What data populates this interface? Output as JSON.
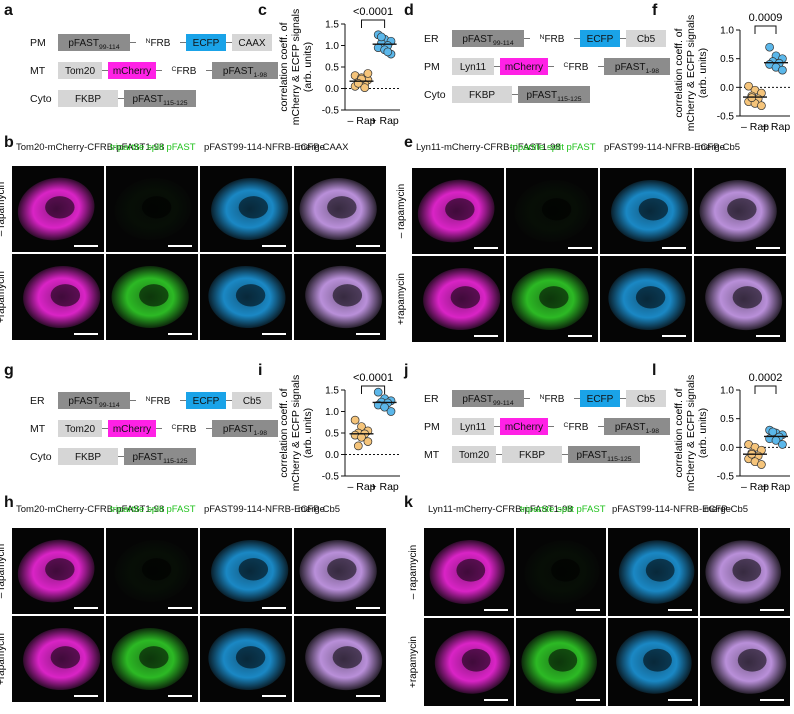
{
  "panels": {
    "a": {
      "label": "a",
      "rows": [
        {
          "tag": "PM",
          "blocks": [
            "pFAST99-114",
            "NFRB",
            "ECFP",
            "CAAX"
          ]
        },
        {
          "tag": "MT",
          "blocks": [
            "Tom20",
            "mCherry",
            "CFRB",
            "pFAST1-98"
          ]
        },
        {
          "tag": "Cyto",
          "blocks": [
            "FKBP",
            "pFAST115-125"
          ]
        }
      ]
    },
    "b": {
      "label": "b",
      "headers": [
        "Tom20-mCherry-CFRB-pFAST1-98",
        "tripartite split pFAST",
        "pFAST99-114-NFRB-ECFP-CAAX",
        "merge"
      ],
      "rows": [
        "– rapamycin",
        "+rapamycin"
      ]
    },
    "c": {
      "label": "c",
      "pvalue": "<0.0001"
    },
    "d": {
      "label": "d",
      "rows": [
        {
          "tag": "ER",
          "blocks": [
            "pFAST99-114",
            "NFRB",
            "ECFP",
            "Cb5"
          ]
        },
        {
          "tag": "PM",
          "blocks": [
            "Lyn11",
            "mCherry",
            "CFRB",
            "pFAST1-98"
          ]
        },
        {
          "tag": "Cyto",
          "blocks": [
            "FKBP",
            "pFAST115-125"
          ]
        }
      ]
    },
    "e": {
      "label": "e",
      "headers": [
        "Lyn11-mCherry-CFRB-pFAST1-98",
        "tripartite split pFAST",
        "pFAST99-114-NFRB-ECFP-Cb5",
        "merge"
      ],
      "rows": [
        "– rapamycin",
        "+rapamycin"
      ]
    },
    "f": {
      "label": "f",
      "pvalue": "0.0009"
    },
    "g": {
      "label": "g",
      "rows": [
        {
          "tag": "ER",
          "blocks": [
            "pFAST99-114",
            "NFRB",
            "ECFP",
            "Cb5"
          ]
        },
        {
          "tag": "MT",
          "blocks": [
            "Tom20",
            "mCherry",
            "CFRB",
            "pFAST1-98"
          ]
        },
        {
          "tag": "Cyto",
          "blocks": [
            "FKBP",
            "pFAST115-125"
          ]
        }
      ]
    },
    "h": {
      "label": "h",
      "headers": [
        "Tom20-mCherry-CFRB-pFAST1-98",
        "tripartite split pFAST",
        "pFAST99-114-NFRB-ECFP-Cb5",
        "merge"
      ],
      "rows": [
        "– rapamycin",
        "+rapamycin"
      ]
    },
    "i": {
      "label": "i",
      "pvalue": "<0.0001"
    },
    "j": {
      "label": "j",
      "rows": [
        {
          "tag": "ER",
          "blocks": [
            "pFAST99-114",
            "NFRB",
            "ECFP",
            "Cb5"
          ]
        },
        {
          "tag": "PM",
          "blocks": [
            "Lyn11",
            "mCherry",
            "CFRB",
            "pFAST1-98"
          ]
        },
        {
          "tag": "MT",
          "blocks": [
            "Tom20",
            "FKBP",
            "pFAST115-125"
          ]
        }
      ]
    },
    "k": {
      "label": "k",
      "headers": [
        "Lyn11-mCherry-CFRB-pFAST1-98",
        "tripartite split pFAST",
        "pFAST99-114-NFRB-ECFP-Cb5",
        "merge"
      ],
      "rows": [
        "– rapamycin",
        "+rapamycin"
      ]
    },
    "l": {
      "label": "l",
      "pvalue": "0.0002"
    }
  },
  "chart_data": [
    {
      "id": "c",
      "type": "scatter",
      "ylabel": "correlation coeff. of mCherry & ECFP signals (arb. units)",
      "categories": [
        "– Rap",
        "+ Rap"
      ],
      "ylim": [
        -0.5,
        1.5
      ],
      "yticks": [
        -0.5,
        0.0,
        0.5,
        1.0,
        1.5
      ],
      "series": [
        {
          "values": [
            0.3,
            0.25,
            0.2,
            0.15,
            0.1,
            0.05,
            0.22,
            0.35,
            0.12,
            0.02
          ],
          "median": 0.17
        },
        {
          "values": [
            1.25,
            1.15,
            1.1,
            1.05,
            1.0,
            0.95,
            0.9,
            0.8,
            1.2,
            0.85
          ],
          "median": 1.03
        }
      ]
    },
    {
      "id": "f",
      "type": "scatter",
      "ylabel": "correlation coeff. of mCherry & ECFP signals (arb. units)",
      "categories": [
        "– Rap",
        "+ Rap"
      ],
      "ylim": [
        -0.5,
        1.0
      ],
      "yticks": [
        -0.5,
        0.0,
        0.5,
        1.0
      ],
      "series": [
        {
          "values": [
            0.02,
            -0.05,
            -0.1,
            -0.15,
            -0.2,
            -0.25,
            -0.28,
            -0.32,
            -0.18
          ],
          "median": -0.17
        },
        {
          "values": [
            0.7,
            0.55,
            0.5,
            0.45,
            0.42,
            0.4,
            0.35,
            0.3
          ],
          "median": 0.43
        }
      ]
    },
    {
      "id": "i",
      "type": "scatter",
      "ylabel": "correlation coeff. of mCherry & ECFP signals (arb. units)",
      "categories": [
        "– Rap",
        "+ Rap"
      ],
      "ylim": [
        -0.5,
        1.5
      ],
      "yticks": [
        -0.5,
        0.0,
        0.5,
        1.0,
        1.5
      ],
      "series": [
        {
          "values": [
            0.8,
            0.65,
            0.55,
            0.5,
            0.48,
            0.45,
            0.4,
            0.3,
            0.2
          ],
          "median": 0.48
        },
        {
          "values": [
            1.45,
            1.3,
            1.25,
            1.22,
            1.2,
            1.15,
            1.1,
            1.0
          ],
          "median": 1.21
        }
      ]
    },
    {
      "id": "l",
      "type": "scatter",
      "ylabel": "correlation coeff. of mCherry & ECFP signals (arb. units)",
      "categories": [
        "– Rap",
        "+ Rap"
      ],
      "ylim": [
        -0.5,
        1.0
      ],
      "yticks": [
        -0.5,
        0.0,
        0.5,
        1.0
      ],
      "series": [
        {
          "values": [
            0.05,
            0.0,
            -0.05,
            -0.1,
            -0.15,
            -0.2,
            -0.25,
            -0.3,
            -0.12
          ],
          "median": -0.12
        },
        {
          "values": [
            0.3,
            0.25,
            0.22,
            0.2,
            0.18,
            0.15,
            0.12,
            0.05,
            0.27
          ],
          "median": 0.19
        }
      ]
    }
  ],
  "colors": {
    "dark_block": "#8c8c8c",
    "light_block": "#d6d6d6",
    "ecfp": "#1aa3e8",
    "mcherry": "#ff21e6",
    "green_text": "#22c21e",
    "magenta_text": "#e020d8",
    "cyan_text": "#1a9fe0",
    "minus_point": "#f5c47a",
    "plus_point": "#5bb7ea"
  }
}
